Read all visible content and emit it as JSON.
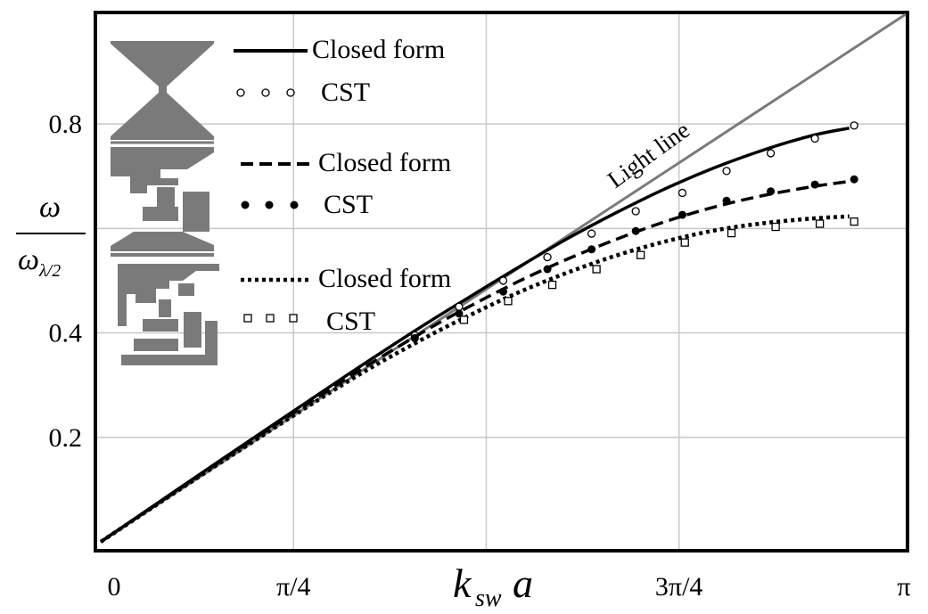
{
  "chart_data": {
    "type": "line",
    "title": "",
    "xlabel": {
      "main": "k",
      "sub": "sw",
      "tail": "a"
    },
    "ylabel": {
      "numerator": "ω",
      "denominator": "ω",
      "denominator_sub": "λ/2"
    },
    "xlim": [
      0,
      3.28
    ],
    "ylim": [
      0,
      1.01
    ],
    "x_ticks": [
      {
        "value": 0,
        "label": "0"
      },
      {
        "value": 0.7854,
        "label": "π/4"
      },
      {
        "value": 2.3562,
        "label": "3π/4"
      },
      {
        "value": 3.1416,
        "label": "π"
      }
    ],
    "x_grid": [
      0.7854,
      1.5708,
      2.3562
    ],
    "y_ticks": [
      {
        "value": 0.2,
        "label": "0.2"
      },
      {
        "value": 0.4,
        "label": "0.4"
      },
      {
        "value": 0.6,
        "label": ""
      },
      {
        "value": 0.8,
        "label": "0.8"
      }
    ],
    "grid": true,
    "legend_position": "top-left",
    "colors": {
      "light_line": "#7a7a7a",
      "grid": "#c8c8c8",
      "series": "#000000",
      "unit_cell": "#7a7a7a"
    },
    "light_line": {
      "label": "Light line",
      "x": [
        0,
        3.28
      ],
      "y": [
        0,
        1.01
      ]
    },
    "series": [
      {
        "legend_label": "Closed form",
        "kind": "closed-form",
        "dash": "solid",
        "x": [
          0,
          0.5,
          1.0,
          1.3,
          1.5,
          1.7,
          1.9,
          2.1,
          2.3,
          2.5,
          2.7,
          2.9,
          3.05
        ],
        "y": [
          0,
          0.16,
          0.318,
          0.41,
          0.468,
          0.525,
          0.58,
          0.63,
          0.676,
          0.716,
          0.75,
          0.778,
          0.792
        ]
      },
      {
        "legend_label": "CST",
        "kind": "cst",
        "marker": "circle-open",
        "x": [
          1.28,
          1.46,
          1.64,
          1.82,
          2.0,
          2.18,
          2.37,
          2.55,
          2.73,
          2.91,
          3.07
        ],
        "y": [
          0.395,
          0.45,
          0.5,
          0.545,
          0.59,
          0.633,
          0.668,
          0.71,
          0.744,
          0.772,
          0.797
        ]
      },
      {
        "legend_label": "Closed form",
        "kind": "closed-form",
        "dash": "dashed",
        "x": [
          0,
          0.5,
          1.0,
          1.3,
          1.5,
          1.7,
          1.9,
          2.1,
          2.3,
          2.5,
          2.7,
          2.9,
          3.05
        ],
        "y": [
          0,
          0.158,
          0.312,
          0.398,
          0.45,
          0.498,
          0.541,
          0.579,
          0.613,
          0.641,
          0.663,
          0.68,
          0.69
        ]
      },
      {
        "legend_label": "CST",
        "kind": "cst",
        "marker": "circle-filled",
        "x": [
          1.28,
          1.46,
          1.64,
          1.82,
          2.0,
          2.18,
          2.37,
          2.55,
          2.73,
          2.91,
          3.07
        ],
        "y": [
          0.39,
          0.437,
          0.479,
          0.522,
          0.56,
          0.595,
          0.626,
          0.653,
          0.671,
          0.684,
          0.694
        ]
      },
      {
        "legend_label": "Closed form",
        "kind": "closed-form",
        "dash": "dotted",
        "x": [
          0,
          0.5,
          1.0,
          1.3,
          1.5,
          1.7,
          1.9,
          2.1,
          2.3,
          2.5,
          2.7,
          2.9,
          3.05
        ],
        "y": [
          0,
          0.155,
          0.305,
          0.385,
          0.433,
          0.477,
          0.515,
          0.548,
          0.575,
          0.596,
          0.61,
          0.619,
          0.623
        ]
      },
      {
        "legend_label": "CST",
        "kind": "cst",
        "marker": "square-open",
        "x": [
          1.48,
          1.66,
          1.84,
          2.02,
          2.2,
          2.38,
          2.57,
          2.75,
          2.93,
          3.07
        ],
        "y": [
          0.425,
          0.461,
          0.492,
          0.522,
          0.549,
          0.573,
          0.591,
          0.603,
          0.609,
          0.613
        ]
      }
    ]
  }
}
